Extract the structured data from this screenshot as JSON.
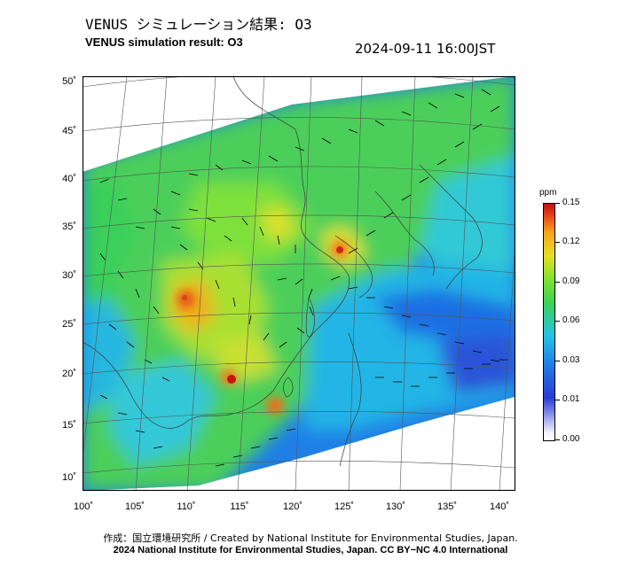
{
  "header": {
    "title_jp": "VENUS シミュレーション結果: O3",
    "title_en": "VENUS simulation result: O3",
    "timestamp": "2024-09-11 16:00JST"
  },
  "map": {
    "lat_labels": [
      "50˚",
      "45˚",
      "40˚",
      "35˚",
      "30˚",
      "25˚",
      "20˚",
      "15˚",
      "10˚"
    ],
    "lon_labels": [
      "100˚",
      "105˚",
      "110˚",
      "115˚",
      "120˚",
      "125˚",
      "130˚",
      "135˚",
      "140˚"
    ],
    "colors": {
      "background_sea": "#2a8be0",
      "land_green": "#4bd15a",
      "high_ozone": "#f08a1c",
      "peak": "#d11f12"
    }
  },
  "legend": {
    "unit": "ppm",
    "ticks": [
      "0.15",
      "0.12",
      "0.09",
      "0.06",
      "0.03",
      "0.01",
      "0.00"
    ]
  },
  "footer": {
    "credit_jp": "作成：国立環境研究所 / Created by National Institute for Environmental Studies, Japan.",
    "credit_en": "2024 National Institute for Environmental Studies, Japan. CC BY−NC 4.0 International"
  }
}
